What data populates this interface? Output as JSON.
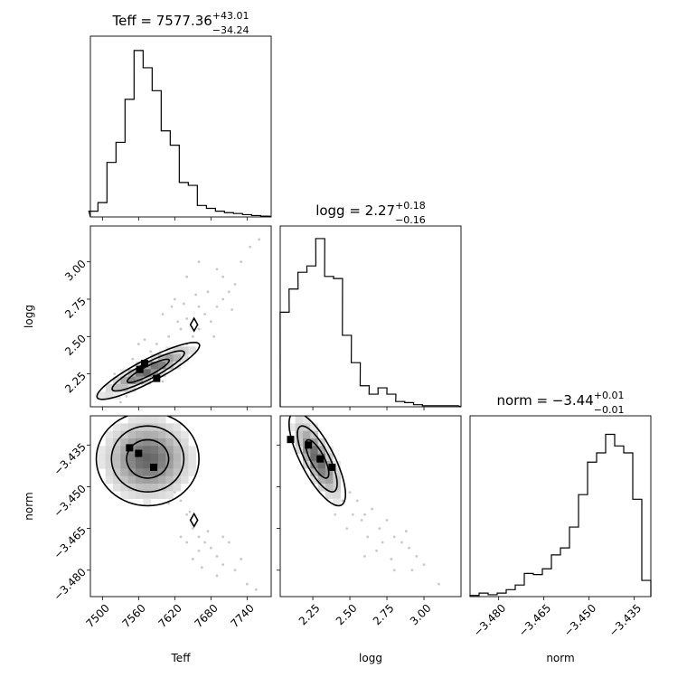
{
  "chart_data": [
    {
      "type": "histogram",
      "id": "hist-teff",
      "title": {
        "base": "Teff = 7577.36",
        "sup": "+43.01",
        "sub": "−34.24"
      },
      "x_param": "Teff",
      "xlim": [
        7480,
        7780
      ],
      "x": [
        7485,
        7500,
        7515,
        7530,
        7545,
        7560,
        7575,
        7590,
        7605,
        7620,
        7635,
        7650,
        7665,
        7680,
        7695,
        7710,
        7725,
        7740,
        7755,
        7770
      ],
      "values": [
        2,
        5,
        19,
        26,
        41,
        58,
        52,
        44,
        30,
        25,
        12,
        11,
        4,
        3,
        2,
        1.5,
        1.2,
        0.8,
        0.5,
        0.3
      ],
      "ylim": [
        0,
        63
      ],
      "show_xticklabels": false,
      "xticks": [
        7500,
        7560,
        7620,
        7680,
        7740
      ]
    },
    {
      "type": "histogram",
      "id": "hist-logg",
      "title": {
        "base": "logg = 2.27",
        "sup": "+0.18",
        "sub": "−0.16"
      },
      "x_param": "logg",
      "xlim": [
        2.03,
        3.25
      ],
      "x": [
        2.06,
        2.12,
        2.18,
        2.24,
        2.3,
        2.36,
        2.42,
        2.48,
        2.54,
        2.6,
        2.66,
        2.72,
        2.78,
        2.84,
        2.9,
        2.96,
        3.02,
        3.08,
        3.14,
        3.2
      ],
      "values": [
        45,
        56,
        64,
        67,
        80,
        62,
        61,
        34,
        21,
        10,
        6,
        9,
        6,
        2.5,
        2,
        1,
        0.5,
        0.5,
        0.5,
        0.5
      ],
      "ylim": [
        0,
        86
      ],
      "show_xticklabels": false,
      "xticks": [
        2.25,
        2.5,
        2.75,
        3.0
      ]
    },
    {
      "type": "histogram",
      "id": "hist-norm",
      "title": {
        "base": "norm = −3.44",
        "sup": "+0.01",
        "sub": "−0.01"
      },
      "x_param": "norm",
      "xlim": [
        -3.4895,
        -3.4295
      ],
      "x": [
        -3.488,
        -3.485,
        -3.482,
        -3.479,
        -3.476,
        -3.473,
        -3.47,
        -3.467,
        -3.464,
        -3.461,
        -3.458,
        -3.455,
        -3.452,
        -3.449,
        -3.446,
        -3.443,
        -3.44,
        -3.437,
        -3.434,
        -3.431
      ],
      "values": [
        0.5,
        1.5,
        0.8,
        1.5,
        3,
        5,
        10,
        9.5,
        12,
        18,
        21,
        30,
        44,
        58,
        62,
        70,
        65,
        62,
        42,
        7
      ],
      "ylim": [
        0,
        78
      ],
      "xticks": [
        -3.48,
        -3.465,
        -3.45,
        -3.435
      ],
      "xticklabels": [
        "−3.480",
        "−3.465",
        "−3.450",
        "−3.435"
      ],
      "xlabel": "norm"
    },
    {
      "type": "2d-density",
      "id": "teff-logg",
      "x_param": "Teff",
      "y_param": "logg",
      "xlim": [
        7480,
        7780
      ],
      "ylim": [
        2.03,
        3.24
      ],
      "yticks": [
        2.25,
        2.5,
        2.75,
        3.0
      ],
      "yticklabels": [
        "2.25",
        "2.50",
        "2.75",
        "3.00"
      ],
      "ylabel": "logg",
      "show_xticklabels": false,
      "xticks": [
        7500,
        7560,
        7620,
        7680,
        7740
      ],
      "mean": [
        7576,
        2.27
      ],
      "cov": [
        [
          1500,
          3.0
        ],
        [
          3.0,
          0.0075
        ]
      ],
      "density_peaks": [
        [
          7562,
          2.28
        ],
        [
          7590,
          2.22
        ],
        [
          7570,
          2.32
        ]
      ],
      "outlier_contour_center": [
        7652,
        2.58
      ],
      "scatter": [
        [
          7530,
          2.06
        ],
        [
          7540,
          2.1
        ],
        [
          7545,
          2.15
        ],
        [
          7600,
          2.2
        ],
        [
          7610,
          2.3
        ],
        [
          7620,
          2.35
        ],
        [
          7630,
          2.4
        ],
        [
          7640,
          2.45
        ],
        [
          7650,
          2.5
        ],
        [
          7660,
          2.55
        ],
        [
          7670,
          2.65
        ],
        [
          7680,
          2.6
        ],
        [
          7690,
          2.7
        ],
        [
          7700,
          2.75
        ],
        [
          7710,
          2.8
        ],
        [
          7720,
          2.85
        ],
        [
          7640,
          2.62
        ],
        [
          7630,
          2.55
        ],
        [
          7660,
          2.7
        ],
        [
          7590,
          2.45
        ],
        [
          7580,
          2.4
        ],
        [
          7570,
          2.48
        ],
        [
          7610,
          2.5
        ],
        [
          7625,
          2.6
        ],
        [
          7700,
          2.9
        ],
        [
          7730,
          3.0
        ],
        [
          7745,
          3.1
        ],
        [
          7655,
          2.78
        ],
        [
          7675,
          2.8
        ],
        [
          7600,
          2.65
        ],
        [
          7615,
          2.7
        ],
        [
          7635,
          2.72
        ],
        [
          7690,
          2.95
        ],
        [
          7640,
          2.9
        ],
        [
          7660,
          3.0
        ],
        [
          7620,
          2.75
        ],
        [
          7550,
          2.35
        ],
        [
          7560,
          2.45
        ],
        [
          7520,
          2.25
        ],
        [
          7510,
          2.15
        ],
        [
          7760,
          3.15
        ],
        [
          7715,
          2.68
        ],
        [
          7685,
          2.5
        ]
      ]
    },
    {
      "type": "2d-density",
      "id": "teff-norm",
      "x_param": "Teff",
      "y_param": "norm",
      "xlim": [
        7480,
        7780
      ],
      "ylim": [
        -3.4895,
        -3.4245
      ],
      "yticks": [
        -3.48,
        -3.465,
        -3.45,
        -3.435
      ],
      "yticklabels": [
        "−3.480",
        "−3.465",
        "−3.450",
        "−3.435"
      ],
      "xticks": [
        7500,
        7560,
        7620,
        7680,
        7740
      ],
      "xticklabels": [
        "7500",
        "7560",
        "7620",
        "7680",
        "7740"
      ],
      "ylabel": "norm",
      "xlabel": "Teff",
      "mean": [
        7575,
        -3.44
      ],
      "cov": [
        [
          1500,
          -0.00025
        ],
        [
          -0.00025,
          5.85e-05
        ]
      ],
      "density_peaks": [
        [
          7560,
          -3.438
        ],
        [
          7545,
          -3.436
        ],
        [
          7585,
          -3.443
        ]
      ],
      "outlier_contour_center": [
        7652,
        -3.462
      ],
      "scatter": [
        [
          7640,
          -3.46
        ],
        [
          7650,
          -3.465
        ],
        [
          7660,
          -3.468
        ],
        [
          7670,
          -3.47
        ],
        [
          7680,
          -3.472
        ],
        [
          7690,
          -3.475
        ],
        [
          7700,
          -3.478
        ],
        [
          7720,
          -3.48
        ],
        [
          7740,
          -3.485
        ],
        [
          7630,
          -3.455
        ],
        [
          7620,
          -3.452
        ],
        [
          7610,
          -3.456
        ],
        [
          7660,
          -3.473
        ],
        [
          7675,
          -3.466
        ],
        [
          7710,
          -3.47
        ],
        [
          7690,
          -3.482
        ],
        [
          7650,
          -3.476
        ],
        [
          7630,
          -3.468
        ],
        [
          7700,
          -3.468
        ],
        [
          7730,
          -3.476
        ],
        [
          7560,
          -3.428
        ],
        [
          7600,
          -3.445
        ],
        [
          7645,
          -3.459
        ],
        [
          7665,
          -3.479
        ],
        [
          7755,
          -3.487
        ],
        [
          7640,
          -3.47
        ]
      ]
    },
    {
      "type": "2d-density",
      "id": "logg-norm",
      "x_param": "logg",
      "y_param": "norm",
      "xlim": [
        2.03,
        3.25
      ],
      "ylim": [
        -3.4895,
        -3.4245
      ],
      "xticks": [
        2.25,
        2.5,
        2.75,
        3.0
      ],
      "xticklabels": [
        "2.25",
        "2.50",
        "2.75",
        "3.00"
      ],
      "xlabel": "logg",
      "show_yticklabels": false,
      "yticks": [
        -3.48,
        -3.465,
        -3.45,
        -3.435
      ],
      "mean": [
        2.28,
        -3.44
      ],
      "cov": [
        [
          0.0075,
          -0.0005
        ],
        [
          -0.0005,
          5.85e-05
        ]
      ],
      "density_peaks": [
        [
          2.1,
          -3.433
        ],
        [
          2.22,
          -3.435
        ],
        [
          2.3,
          -3.44
        ],
        [
          2.38,
          -3.443
        ]
      ],
      "scatter": [
        [
          2.5,
          -3.452
        ],
        [
          2.55,
          -3.455
        ],
        [
          2.6,
          -3.46
        ],
        [
          2.65,
          -3.458
        ],
        [
          2.7,
          -3.465
        ],
        [
          2.75,
          -3.462
        ],
        [
          2.8,
          -3.468
        ],
        [
          2.85,
          -3.47
        ],
        [
          2.9,
          -3.472
        ],
        [
          2.95,
          -3.475
        ],
        [
          3.0,
          -3.478
        ],
        [
          2.72,
          -3.47
        ],
        [
          2.78,
          -3.476
        ],
        [
          2.62,
          -3.468
        ],
        [
          2.58,
          -3.462
        ],
        [
          2.45,
          -3.455
        ],
        [
          2.52,
          -3.46
        ],
        [
          2.88,
          -3.466
        ],
        [
          2.68,
          -3.473
        ],
        [
          3.1,
          -3.485
        ],
        [
          2.8,
          -3.48
        ],
        [
          2.4,
          -3.46
        ],
        [
          2.48,
          -3.465
        ],
        [
          2.92,
          -3.48
        ],
        [
          2.6,
          -3.475
        ]
      ]
    }
  ]
}
